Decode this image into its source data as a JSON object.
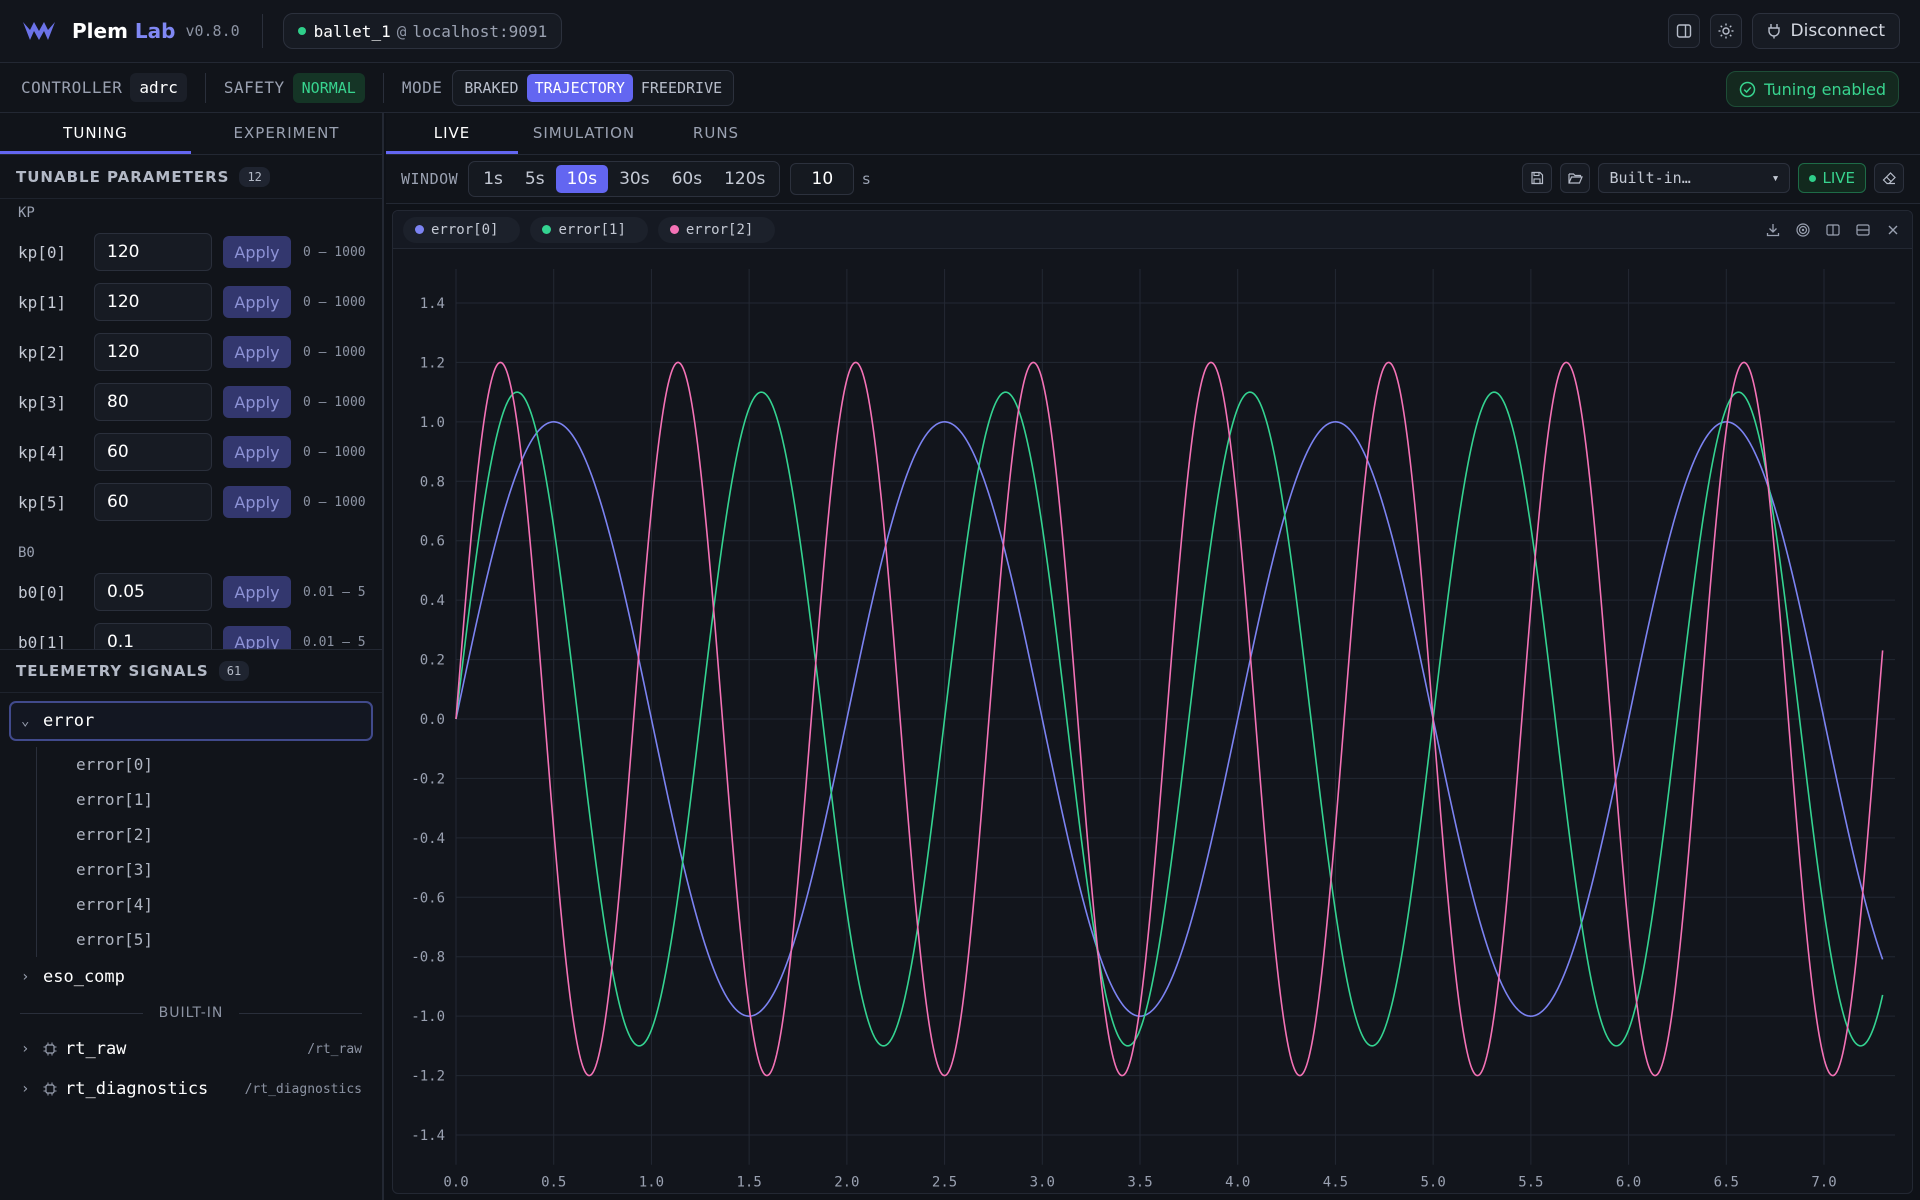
{
  "app": {
    "brand": "Plem",
    "brand_accent": "Lab",
    "version": "v0.8.0",
    "connection_name": "ballet_1",
    "connection_at": "@",
    "connection_host": "localhost:9091",
    "disconnect_label": "Disconnect"
  },
  "status": {
    "controller_label": "CONTROLLER",
    "controller_value": "adrc",
    "safety_label": "SAFETY",
    "safety_value": "NORMAL",
    "mode_label": "MODE",
    "modes": [
      "BRAKED",
      "TRAJECTORY",
      "FREEDRIVE"
    ],
    "active_mode": "TRAJECTORY",
    "tuning_badge": "Tuning enabled"
  },
  "left": {
    "tabs": [
      "TUNING",
      "EXPERIMENT"
    ],
    "params_title": "TUNABLE PARAMETERS",
    "params_count": "12",
    "apply_label": "Apply",
    "groups": [
      {
        "label": "KP",
        "params": [
          {
            "name": "kp[0]",
            "value": "120",
            "range": "0 – 1000"
          },
          {
            "name": "kp[1]",
            "value": "120",
            "range": "0 – 1000"
          },
          {
            "name": "kp[2]",
            "value": "120",
            "range": "0 – 1000"
          },
          {
            "name": "kp[3]",
            "value": "80",
            "range": "0 – 1000"
          },
          {
            "name": "kp[4]",
            "value": "60",
            "range": "0 – 1000"
          },
          {
            "name": "kp[5]",
            "value": "60",
            "range": "0 – 1000"
          }
        ]
      },
      {
        "label": "B0",
        "params": [
          {
            "name": "b0[0]",
            "value": "0.05",
            "range": "0.01 – 5"
          },
          {
            "name": "b0[1]",
            "value": "0.1",
            "range": "0.01 – 5"
          }
        ]
      }
    ],
    "telemetry_title": "TELEMETRY SIGNALS",
    "telemetry_count": "61",
    "tree_error": "error",
    "error_children": [
      "error[0]",
      "error[1]",
      "error[2]",
      "error[3]",
      "error[4]",
      "error[5]"
    ],
    "tree_eso": "eso_comp",
    "builtin_label": "BUILT-IN",
    "builtin": [
      {
        "name": "rt_raw",
        "path": "/rt_raw"
      },
      {
        "name": "rt_diagnostics",
        "path": "/rt_diagnostics"
      }
    ]
  },
  "main": {
    "tabs": [
      "LIVE",
      "SIMULATION",
      "RUNS"
    ],
    "window_label": "WINDOW",
    "windows": [
      "1s",
      "5s",
      "10s",
      "30s",
      "60s",
      "120s"
    ],
    "active_window": "10s",
    "window_value": "10",
    "window_unit": "s",
    "preset": "Built-in…",
    "live_label": "LIVE"
  },
  "chart_data": {
    "type": "line",
    "x_ticks": [
      0.0,
      0.5,
      1.0,
      1.5,
      2.0,
      2.5,
      3.0,
      3.5,
      4.0,
      4.5,
      5.0,
      5.5,
      6.0,
      6.5,
      7.0
    ],
    "y_ticks": [
      1.4,
      1.2,
      1.0,
      0.8,
      0.6,
      0.4,
      0.2,
      0.0,
      -0.2,
      -0.4,
      -0.6,
      -0.8,
      -1.0,
      -1.2,
      -1.4
    ],
    "xlim": [
      0,
      7.3
    ],
    "ylim": [
      -1.5,
      1.5
    ],
    "grid": true,
    "series": [
      {
        "name": "error[0]",
        "color": "#7c83f2",
        "amplitude": 1.0,
        "period_s": 2.0,
        "x": [
          0,
          0.5,
          1.0,
          1.5,
          2.0,
          2.5,
          3.0,
          3.5,
          4.0,
          4.5,
          5.0,
          5.5,
          6.0,
          6.5,
          7.0,
          7.3
        ],
        "y": [
          0,
          1.0,
          0,
          -1.0,
          0,
          1.0,
          0,
          -1.0,
          0,
          1.0,
          0,
          -1.0,
          0,
          1.0,
          0,
          -0.81
        ]
      },
      {
        "name": "error[1]",
        "color": "#34d391",
        "amplitude": 1.1,
        "period_s": 1.25,
        "x": [
          0,
          0.3125,
          0.625,
          0.9375,
          1.25,
          1.5625,
          1.875,
          2.1875,
          2.5,
          2.8125,
          3.125,
          3.4375,
          3.75,
          4.0625,
          4.375,
          4.6875,
          5.0,
          5.3125,
          5.625,
          5.9375,
          6.25,
          6.5625,
          6.875,
          7.1875,
          7.3
        ],
        "y": [
          0,
          1.1,
          0,
          -1.1,
          0,
          1.1,
          0,
          -1.1,
          0,
          1.1,
          0,
          -1.1,
          0,
          1.1,
          0,
          -1.1,
          0,
          1.1,
          0,
          -1.1,
          0,
          1.1,
          0,
          -1.1,
          -0.9
        ]
      },
      {
        "name": "error[2]",
        "color": "#f472b6",
        "amplitude": 1.2,
        "period_s": 0.909,
        "x": [
          0,
          0.227,
          0.455,
          0.682,
          0.909,
          1.136,
          1.364,
          1.591,
          1.818,
          2.045,
          2.273,
          2.5,
          2.727,
          2.955,
          3.182,
          3.409,
          3.636,
          3.864,
          4.091,
          4.318,
          4.545,
          4.773,
          5.0,
          5.227,
          5.455,
          5.682,
          5.909,
          6.136,
          6.364,
          6.591,
          6.818,
          7.045,
          7.273,
          7.3
        ],
        "y": [
          0,
          1.2,
          0,
          -1.2,
          0,
          1.2,
          0,
          -1.2,
          0,
          1.2,
          0,
          -1.2,
          0,
          1.2,
          0,
          -1.2,
          0,
          1.2,
          0,
          -1.2,
          0,
          1.2,
          0,
          -1.2,
          0,
          1.2,
          0,
          -1.2,
          0,
          1.2,
          0,
          -1.2,
          0,
          0.32
        ]
      }
    ]
  }
}
